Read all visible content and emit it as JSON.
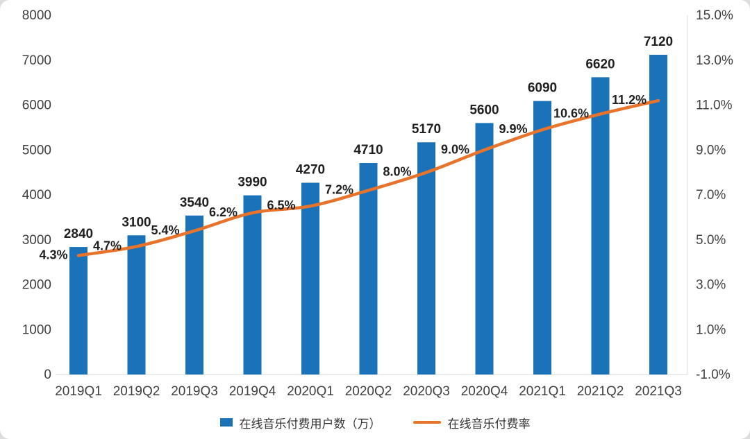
{
  "chart_data": {
    "type": "bar",
    "subtype": "bar+line-combo",
    "categories": [
      "2019Q1",
      "2019Q2",
      "2019Q3",
      "2019Q4",
      "2020Q1",
      "2020Q2",
      "2020Q3",
      "2020Q4",
      "2021Q1",
      "2021Q2",
      "2021Q3"
    ],
    "series": [
      {
        "name": "在线音乐付费用户数（万）",
        "type": "bar",
        "axis": "left",
        "color": "#1a72b8",
        "values": [
          2840,
          3100,
          3540,
          3990,
          4270,
          4710,
          5170,
          5600,
          6090,
          6620,
          7120
        ],
        "labels": [
          "2840",
          "3100",
          "3540",
          "3990",
          "4270",
          "4710",
          "5170",
          "5600",
          "6090",
          "6620",
          "7120"
        ]
      },
      {
        "name": "在线音乐付费率",
        "type": "line",
        "axis": "right",
        "color": "#e8742c",
        "values": [
          4.3,
          4.7,
          5.4,
          6.2,
          6.5,
          7.2,
          8.0,
          9.0,
          9.9,
          10.6,
          11.2
        ],
        "labels": [
          "4.3%",
          "4.7%",
          "5.4%",
          "6.2%",
          "6.5%",
          "7.2%",
          "8.0%",
          "9.0%",
          "9.9%",
          "10.6%",
          "11.2%"
        ]
      }
    ],
    "left_axis": {
      "min": 0,
      "max": 8000,
      "step": 1000,
      "tick_labels": [
        "0",
        "1000",
        "2000",
        "3000",
        "4000",
        "5000",
        "6000",
        "7000",
        "8000"
      ]
    },
    "right_axis": {
      "min": -1,
      "max": 15,
      "step": 2,
      "tick_labels": [
        "-1.0%",
        "1.0%",
        "3.0%",
        "5.0%",
        "7.0%",
        "9.0%",
        "11.0%",
        "13.0%",
        "15.0%"
      ]
    },
    "grid": false,
    "legend_position": "bottom",
    "legend": [
      "在线音乐付费用户数（万）",
      "在线音乐付费率"
    ],
    "axis_line_color": "#d9d9d9",
    "background": "#ffffff"
  }
}
